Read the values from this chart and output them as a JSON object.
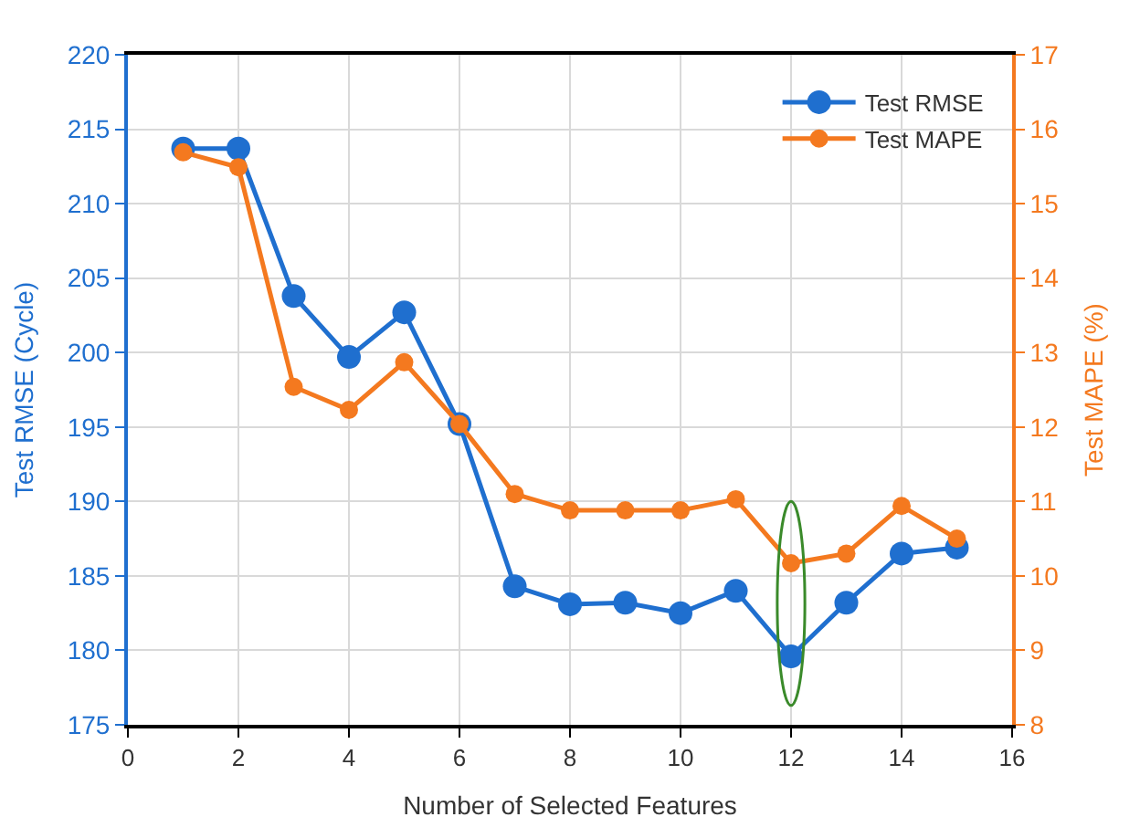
{
  "chart_data": {
    "type": "line",
    "xlabel": "Number of Selected Features",
    "ylabel": "Test RMSE (Cycle)",
    "y2label": "Test MAPE (%)",
    "x": [
      1,
      2,
      3,
      4,
      5,
      6,
      7,
      8,
      9,
      10,
      11,
      12,
      13,
      14,
      15
    ],
    "series": [
      {
        "name": "Test RMSE",
        "color": "#1f6fcf",
        "values": [
          213.7,
          213.7,
          203.8,
          199.7,
          202.7,
          195.2,
          184.3,
          183.1,
          183.2,
          182.5,
          184.0,
          179.6,
          183.2,
          186.5,
          186.9
        ]
      },
      {
        "name": "Test MAPE",
        "color": "#f4791f",
        "axis": "y2",
        "values": [
          15.69,
          15.49,
          12.54,
          12.23,
          12.87,
          12.04,
          11.1,
          10.88,
          10.88,
          10.88,
          11.03,
          10.17,
          10.3,
          10.94,
          10.5
        ]
      }
    ],
    "xlim": [
      0,
      16
    ],
    "xticks": [
      0,
      2,
      4,
      6,
      8,
      10,
      12,
      14,
      16
    ],
    "ylim": [
      175,
      220
    ],
    "yticks": [
      175,
      180,
      185,
      190,
      195,
      200,
      205,
      210,
      215,
      220
    ],
    "y2lim": [
      8,
      17
    ],
    "y2ticks": [
      8,
      9,
      10,
      11,
      12,
      13,
      14,
      15,
      16,
      17
    ],
    "grid": true,
    "legend": "top right",
    "marker": "circle",
    "line_style": "solid"
  }
}
